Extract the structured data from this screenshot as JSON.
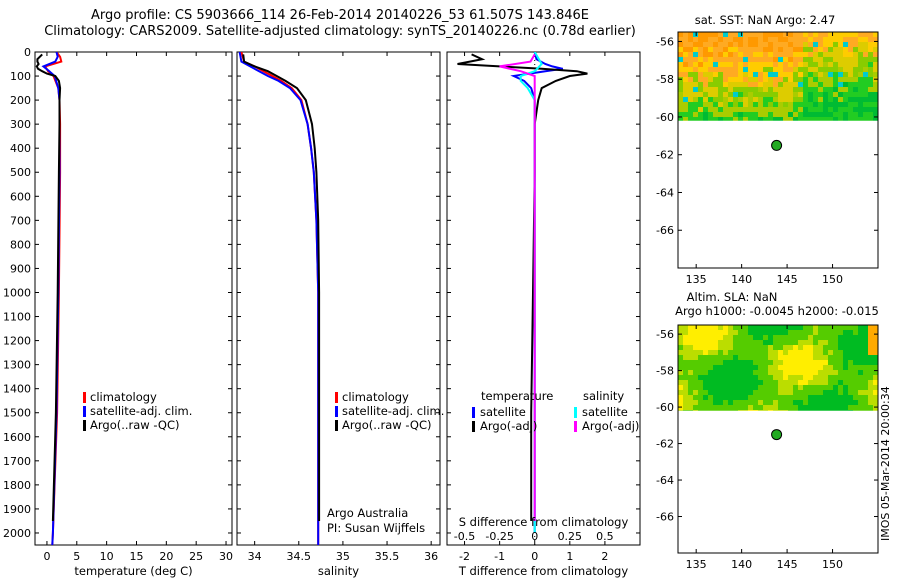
{
  "title_line1": "Argo profile: CS 5903666_114 26-Feb-2014 20140226_53 61.507S 143.846E",
  "title_line2": "Climatology: CARS2009. Satellite-adjusted climatology: synTS_20140226.nc (0.78d earlier)",
  "colors": {
    "climatology": "#ff0000",
    "satellite": "#0000ff",
    "argo": "#000000",
    "sat_s": "#00ffff",
    "argo_s": "#ff00ff",
    "float": "#22aa22"
  },
  "chart_data": [
    {
      "type": "line",
      "id": "temperature",
      "xlabel": "temperature (deg C)",
      "ylabel": "",
      "xlim": [
        -2,
        31
      ],
      "ylim": [
        2050,
        0
      ],
      "xticks": [
        0,
        5,
        10,
        15,
        20,
        25,
        30
      ],
      "yticks": [
        0,
        100,
        200,
        300,
        400,
        500,
        600,
        700,
        800,
        900,
        1000,
        1100,
        1200,
        1300,
        1400,
        1500,
        1600,
        1700,
        1800,
        1900,
        2000
      ],
      "legend": [
        "climatology",
        "satellite-adj. clim.",
        "Argo(..raw -QC)"
      ],
      "series": [
        {
          "name": "climatology",
          "depth": [
            0,
            20,
            40,
            60,
            80,
            100,
            150,
            200,
            300,
            500,
            1000,
            1500,
            2000,
            2050
          ],
          "values": [
            1.6,
            2.2,
            2.4,
            -0.3,
            0.2,
            1.1,
            1.9,
            2.1,
            2.2,
            2.2,
            2.0,
            1.7,
            1.0,
            0.9
          ]
        },
        {
          "name": "satellite-adj. clim.",
          "depth": [
            0,
            20,
            40,
            60,
            80,
            100,
            150,
            200,
            300,
            500,
            1000,
            1500,
            2000,
            2050
          ],
          "values": [
            1.6,
            1.8,
            1.4,
            -0.6,
            0.4,
            1.3,
            1.9,
            2.1,
            2.1,
            2.1,
            1.9,
            1.6,
            1.0,
            0.9
          ]
        },
        {
          "name": "Argo(..raw -QC)",
          "depth": [
            10,
            20,
            30,
            40,
            50,
            60,
            70,
            80,
            90,
            100,
            120,
            150,
            200,
            300,
            500,
            1000,
            1500,
            1950
          ],
          "values": [
            -0.8,
            -1.2,
            -1.6,
            -1.6,
            -1.4,
            -1.7,
            -1.5,
            -0.8,
            0.0,
            1.4,
            2.0,
            2.2,
            2.1,
            2.1,
            2.0,
            1.8,
            1.5,
            1.0
          ]
        }
      ]
    },
    {
      "type": "line",
      "id": "salinity",
      "xlabel": "salinity",
      "xlim": [
        33.8,
        36.1
      ],
      "ylim": [
        2050,
        0
      ],
      "xticks": [
        34,
        34.5,
        35,
        35.5,
        36
      ],
      "legend": [
        "climatology",
        "satellite-adj. clim.",
        "Argo(..raw -QC)"
      ],
      "annotation": [
        "Argo Australia",
        "PI: Susan Wijffels"
      ],
      "series": [
        {
          "name": "climatology",
          "depth": [
            0,
            40,
            60,
            80,
            100,
            120,
            150,
            200,
            300,
            400,
            500,
            700,
            1000,
            1500,
            2000,
            2050
          ],
          "values": [
            33.85,
            33.88,
            34.0,
            34.1,
            34.2,
            34.3,
            34.42,
            34.53,
            34.6,
            34.64,
            34.67,
            34.7,
            34.72,
            34.72,
            34.72,
            34.72
          ]
        },
        {
          "name": "satellite-adj. clim.",
          "depth": [
            0,
            40,
            60,
            80,
            100,
            120,
            150,
            200,
            300,
            400,
            500,
            700,
            1000,
            1500,
            2000,
            2050
          ],
          "values": [
            33.83,
            33.85,
            33.95,
            34.05,
            34.15,
            34.27,
            34.4,
            34.52,
            34.6,
            34.64,
            34.67,
            34.7,
            34.72,
            34.72,
            34.72,
            34.72
          ]
        },
        {
          "name": "Argo(..raw -QC)",
          "depth": [
            10,
            40,
            60,
            80,
            100,
            120,
            150,
            200,
            300,
            400,
            500,
            700,
            1000,
            1500,
            1950
          ],
          "values": [
            33.87,
            33.88,
            34.0,
            34.15,
            34.25,
            34.35,
            34.48,
            34.58,
            34.65,
            34.68,
            34.7,
            34.72,
            34.73,
            34.73,
            34.73
          ]
        }
      ]
    },
    {
      "type": "line",
      "id": "difference",
      "xlabel": "T difference from climatology",
      "xlabel_top": "S difference from climatology",
      "xlim": [
        -2.5,
        3.0
      ],
      "ylim": [
        2050,
        0
      ],
      "xticks": [
        -2,
        -1,
        0,
        1,
        2
      ],
      "s_xticks": [
        "-0.5",
        "-0.25",
        "0",
        "0.25",
        "0.5"
      ],
      "legend_titles": [
        "temperature",
        "salinity"
      ],
      "legend": [
        "satellite",
        "Argo(-adj)",
        "satellite",
        "Argo(-adj)"
      ],
      "series": [
        {
          "name": "T satellite",
          "depth": [
            0,
            30,
            50,
            60,
            70,
            80,
            100,
            120,
            150,
            200,
            300,
            500,
            1000,
            1500,
            2000
          ],
          "values": [
            0.0,
            0.05,
            0.3,
            0.5,
            0.8,
            0.3,
            -0.6,
            -0.3,
            -0.1,
            0.0,
            0.0,
            0.0,
            0.0,
            0.0,
            0.0
          ]
        },
        {
          "name": "T Argo(-adj)",
          "depth": [
            10,
            30,
            50,
            60,
            70,
            80,
            90,
            100,
            120,
            150,
            200,
            300,
            500,
            1000,
            1500,
            1950
          ],
          "values": [
            -1.8,
            -1.5,
            -2.2,
            -1.0,
            0.2,
            1.2,
            1.5,
            1.0,
            0.6,
            0.2,
            0.1,
            0.0,
            0.0,
            -0.05,
            -0.1,
            -0.1
          ]
        },
        {
          "name": "S satellite",
          "depth": [
            0,
            50,
            80,
            100,
            120,
            150,
            200,
            300,
            400,
            500,
            600,
            1000,
            1500,
            2000
          ],
          "values": [
            0.0,
            0.05,
            0.0,
            -0.1,
            -0.1,
            -0.05,
            0.0,
            0.0,
            0.0,
            0.0,
            0.0,
            0.0,
            0.0,
            0.0
          ]
        },
        {
          "name": "S Argo(-adj)",
          "depth": [
            10,
            40,
            60,
            80,
            100,
            150,
            200,
            300,
            500,
            1000,
            1500,
            1950
          ],
          "values": [
            0.0,
            -0.03,
            -0.25,
            -0.1,
            0.0,
            0.0,
            0.0,
            0.0,
            0.0,
            0.0,
            0.0,
            0.0
          ]
        }
      ]
    },
    {
      "type": "heatmap",
      "id": "sst_map",
      "title": "sat. SST: NaN Argo: 2.47",
      "xlim": [
        133,
        155
      ],
      "ylim": [
        -68,
        -55.5
      ],
      "xticks": [
        135,
        140,
        145,
        150
      ],
      "yticks": [
        -56,
        -58,
        -60,
        -62,
        -64,
        -66
      ],
      "argo_position": {
        "lon": 143.846,
        "lat": -61.507
      }
    },
    {
      "type": "heatmap",
      "id": "sla_map",
      "title_line1": "Altim. SLA: NaN",
      "title_line2": "Argo h1000: -0.0045 h2000: -0.015",
      "xlim": [
        133,
        155
      ],
      "ylim": [
        -68,
        -55.5
      ],
      "xticks": [
        135,
        140,
        145,
        150
      ],
      "yticks": [
        -56,
        -58,
        -60,
        -62,
        -64,
        -66
      ],
      "argo_position": {
        "lon": 143.846,
        "lat": -61.507
      }
    }
  ],
  "stamp": "IMOS 05-Mar-2014 20:00:34"
}
